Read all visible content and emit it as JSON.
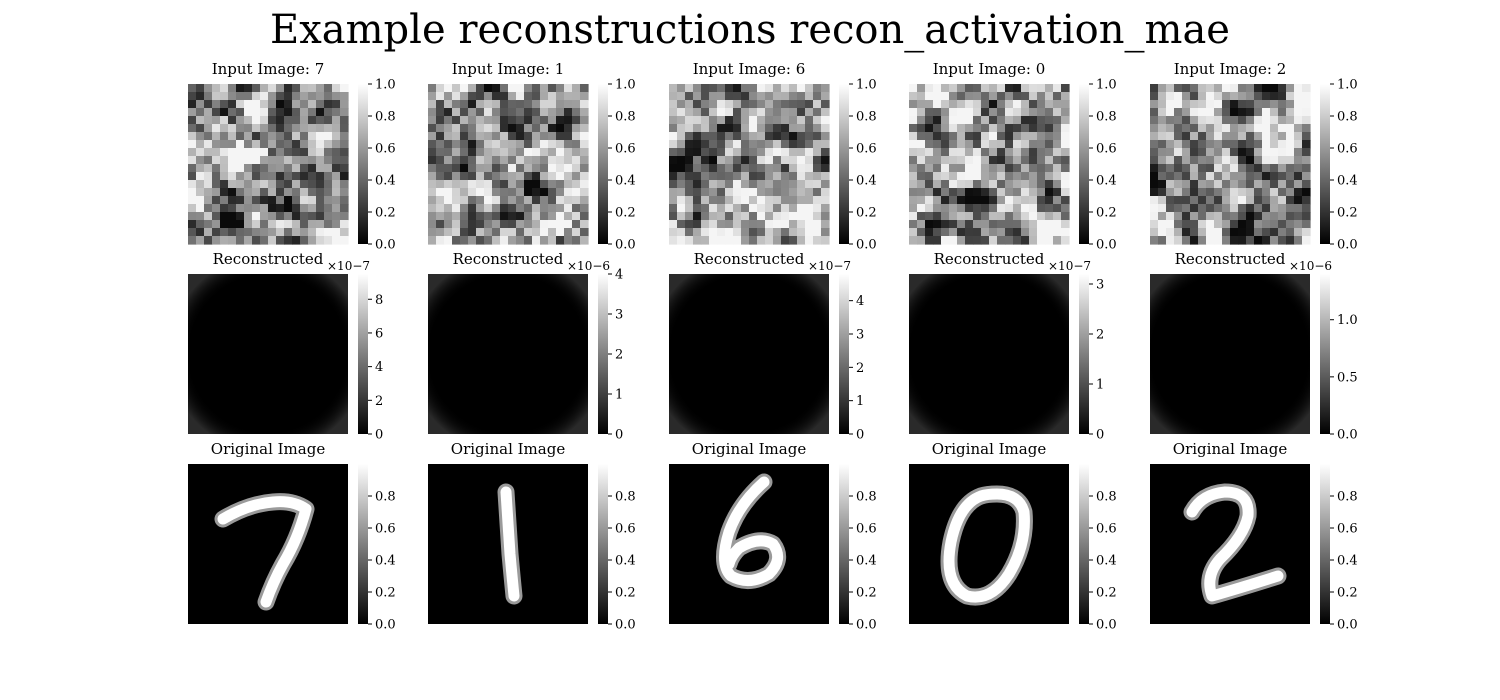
{
  "title": "Example reconstructions recon_activation_mae",
  "row_titles": {
    "reconstructed": "Reconstructed",
    "original": "Original Image"
  },
  "chart_data": [
    {
      "type": "heatmap",
      "row": 0,
      "col": 0,
      "title": "Input Image: 7",
      "colorbar": {
        "ticks": [
          "0.0",
          "0.2",
          "0.4",
          "0.6",
          "0.8",
          "1.0"
        ],
        "range": [
          0,
          1
        ]
      }
    },
    {
      "type": "heatmap",
      "row": 0,
      "col": 1,
      "title": "Input Image: 1",
      "colorbar": {
        "ticks": [
          "0.0",
          "0.2",
          "0.4",
          "0.6",
          "0.8",
          "1.0"
        ],
        "range": [
          0,
          1
        ]
      }
    },
    {
      "type": "heatmap",
      "row": 0,
      "col": 2,
      "title": "Input Image: 6",
      "colorbar": {
        "ticks": [
          "0.0",
          "0.2",
          "0.4",
          "0.6",
          "0.8",
          "1.0"
        ],
        "range": [
          0,
          1
        ]
      }
    },
    {
      "type": "heatmap",
      "row": 0,
      "col": 3,
      "title": "Input Image: 0",
      "colorbar": {
        "ticks": [
          "0.0",
          "0.2",
          "0.4",
          "0.6",
          "0.8",
          "1.0"
        ],
        "range": [
          0,
          1
        ]
      }
    },
    {
      "type": "heatmap",
      "row": 0,
      "col": 4,
      "title": "Input Image: 2",
      "colorbar": {
        "ticks": [
          "0.0",
          "0.2",
          "0.4",
          "0.6",
          "0.8",
          "1.0"
        ],
        "range": [
          0,
          1
        ]
      }
    },
    {
      "type": "heatmap",
      "row": 1,
      "col": 0,
      "title": "Reconstructed",
      "colorbar": {
        "ticks": [
          "0",
          "2",
          "4",
          "6",
          "8"
        ],
        "range": [
          0,
          9.5
        ],
        "exponent": "×10−7"
      }
    },
    {
      "type": "heatmap",
      "row": 1,
      "col": 1,
      "title": "Reconstructed",
      "colorbar": {
        "ticks": [
          "0",
          "1",
          "2",
          "3",
          "4"
        ],
        "range": [
          0,
          4
        ],
        "exponent": "×10−6"
      }
    },
    {
      "type": "heatmap",
      "row": 1,
      "col": 2,
      "title": "Reconstructed",
      "colorbar": {
        "ticks": [
          "0",
          "1",
          "2",
          "3",
          "4"
        ],
        "range": [
          0,
          4.8
        ],
        "exponent": "×10−7"
      }
    },
    {
      "type": "heatmap",
      "row": 1,
      "col": 3,
      "title": "Reconstructed",
      "colorbar": {
        "ticks": [
          "0",
          "1",
          "2",
          "3"
        ],
        "range": [
          0,
          3.2
        ],
        "exponent": "×10−7"
      }
    },
    {
      "type": "heatmap",
      "row": 1,
      "col": 4,
      "title": "Reconstructed",
      "colorbar": {
        "ticks": [
          "0.0",
          "0.5",
          "1.0"
        ],
        "range": [
          0,
          1.4
        ],
        "exponent": "×10−6"
      }
    },
    {
      "type": "heatmap",
      "row": 2,
      "col": 0,
      "title": "Original Image",
      "digit": "7",
      "colorbar": {
        "ticks": [
          "0.0",
          "0.2",
          "0.4",
          "0.6",
          "0.8"
        ],
        "range": [
          0,
          1
        ]
      }
    },
    {
      "type": "heatmap",
      "row": 2,
      "col": 1,
      "title": "Original Image",
      "digit": "1",
      "colorbar": {
        "ticks": [
          "0.0",
          "0.2",
          "0.4",
          "0.6",
          "0.8"
        ],
        "range": [
          0,
          1
        ]
      }
    },
    {
      "type": "heatmap",
      "row": 2,
      "col": 2,
      "title": "Original Image",
      "digit": "6",
      "colorbar": {
        "ticks": [
          "0.0",
          "0.2",
          "0.4",
          "0.6",
          "0.8"
        ],
        "range": [
          0,
          1
        ]
      }
    },
    {
      "type": "heatmap",
      "row": 2,
      "col": 3,
      "title": "Original Image",
      "digit": "0",
      "colorbar": {
        "ticks": [
          "0.0",
          "0.2",
          "0.4",
          "0.6",
          "0.8"
        ],
        "range": [
          0,
          1
        ]
      }
    },
    {
      "type": "heatmap",
      "row": 2,
      "col": 4,
      "title": "Original Image",
      "digit": "2",
      "colorbar": {
        "ticks": [
          "0.0",
          "0.2",
          "0.4",
          "0.6",
          "0.8"
        ],
        "range": [
          0,
          1
        ]
      }
    }
  ]
}
